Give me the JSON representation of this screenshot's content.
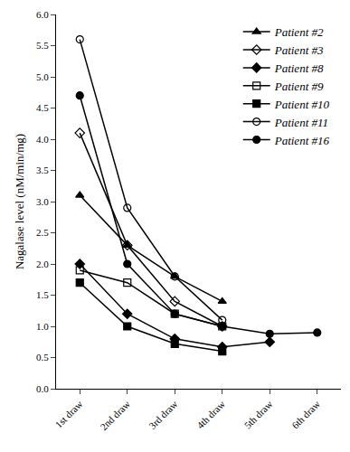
{
  "chart_data": {
    "type": "line",
    "y_label": "Nagalase level (nM/min/mg)",
    "categories": [
      "1st draw",
      "2nd draw",
      "3rd draw",
      "4th draw",
      "5th draw",
      "6th draw"
    ],
    "series": [
      {
        "name": "Patient #2",
        "color": "#000000",
        "marker": "triangle-up",
        "values": [
          3.1,
          2.3,
          1.8,
          1.4,
          null,
          null
        ]
      },
      {
        "name": "Patient #3",
        "color": "#000000",
        "marker": "diamond-open",
        "values": [
          4.1,
          2.3,
          1.4,
          1.0,
          null,
          null
        ]
      },
      {
        "name": "Patient #8",
        "color": "#000000",
        "marker": "diamond",
        "values": [
          2.0,
          1.2,
          0.8,
          0.67,
          0.75,
          null
        ]
      },
      {
        "name": "Patient #9",
        "color": "#000000",
        "marker": "square-open",
        "values": [
          1.9,
          1.7,
          1.2,
          1.0,
          null,
          null
        ]
      },
      {
        "name": "Patient #10",
        "color": "#000000",
        "marker": "square",
        "values": [
          1.7,
          1.0,
          0.72,
          0.6,
          null,
          null
        ]
      },
      {
        "name": "Patient #11",
        "color": "#000000",
        "marker": "circle-open",
        "values": [
          5.6,
          2.9,
          1.8,
          1.1,
          null,
          null
        ]
      },
      {
        "name": "Patient #16",
        "color": "#000000",
        "marker": "circle",
        "values": [
          4.7,
          2.0,
          1.2,
          1.0,
          0.88,
          0.9
        ]
      }
    ],
    "ylim": [
      0,
      6
    ],
    "yticks": [
      {
        "value": 0,
        "label": "0.0"
      },
      0.5,
      {
        "value": 1,
        "label": "1.0"
      },
      1.5,
      {
        "value": 2,
        "label": "2.0"
      },
      2.5,
      {
        "value": 3,
        "label": "3.0"
      },
      3.5,
      {
        "value": 4,
        "label": "4.0"
      },
      4.5,
      {
        "value": 5,
        "label": "5.0"
      },
      5.5,
      {
        "value": 6,
        "label": "6.0"
      }
    ],
    "grid": false,
    "legend": "top right"
  }
}
